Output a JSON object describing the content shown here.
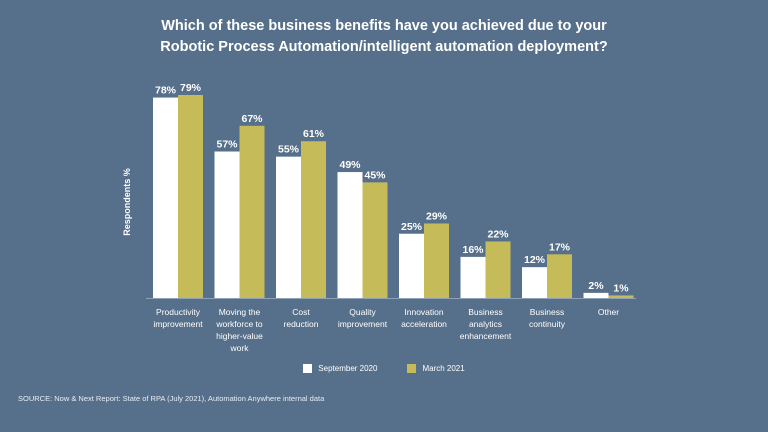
{
  "chart_data": {
    "type": "bar",
    "title_lines": [
      "Which of these business benefits have you achieved due to your",
      "Robotic Process Automation/intelligent automation deployment?"
    ],
    "ylabel": "Respondents %",
    "ylim": [
      0,
      100
    ],
    "categories": [
      [
        "Productivity",
        "improvement"
      ],
      [
        "Moving the",
        "workforce to",
        "higher-value",
        "work"
      ],
      [
        "Cost",
        "reduction"
      ],
      [
        "Quality",
        "improvement"
      ],
      [
        "Innovation",
        "acceleration"
      ],
      [
        "Business",
        "analytics",
        "enhancement"
      ],
      [
        "Business",
        "continuity"
      ],
      [
        "Other"
      ]
    ],
    "series": [
      {
        "name": "September 2020",
        "color": "#ffffff",
        "values": [
          78,
          57,
          55,
          49,
          25,
          16,
          12,
          2
        ]
      },
      {
        "name": "March 2021",
        "color": "#c5bb58",
        "values": [
          79,
          67,
          61,
          45,
          29,
          22,
          17,
          1
        ]
      }
    ],
    "value_suffix": "%",
    "legend_position": "bottom-center"
  },
  "source": "SOURCE: Now & Next Report: State of RPA (July 2021), Automation Anywhere internal data"
}
